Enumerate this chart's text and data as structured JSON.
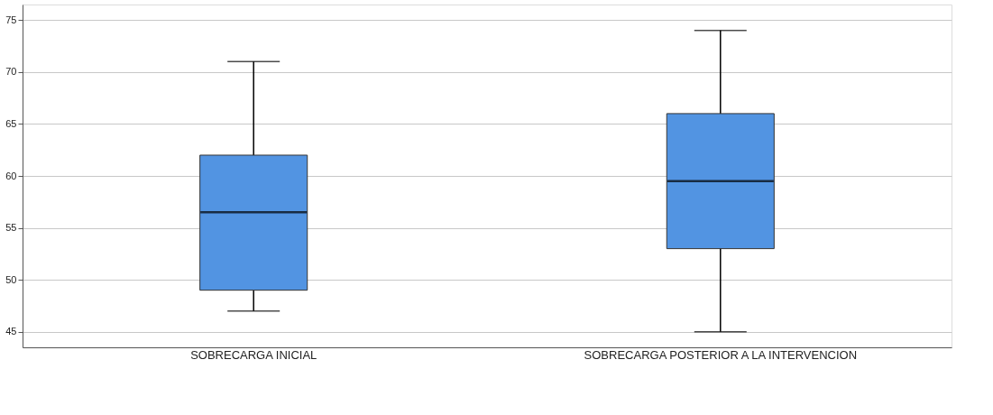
{
  "chart_data": {
    "type": "box",
    "categories": [
      "SOBRECARGA INICIAL",
      "SOBRECARGA POSTERIOR A LA INTERVENCION"
    ],
    "boxes": [
      {
        "low": 47,
        "q1": 49,
        "median": 56.5,
        "q3": 62,
        "high": 71
      },
      {
        "low": 45,
        "q1": 53,
        "median": 59.5,
        "q3": 66,
        "high": 74
      }
    ],
    "color": "#5294e2",
    "ylim": [
      43.5,
      76.5
    ],
    "yticks": [
      45,
      50,
      55,
      60,
      65,
      70,
      75
    ],
    "grid": "y"
  }
}
